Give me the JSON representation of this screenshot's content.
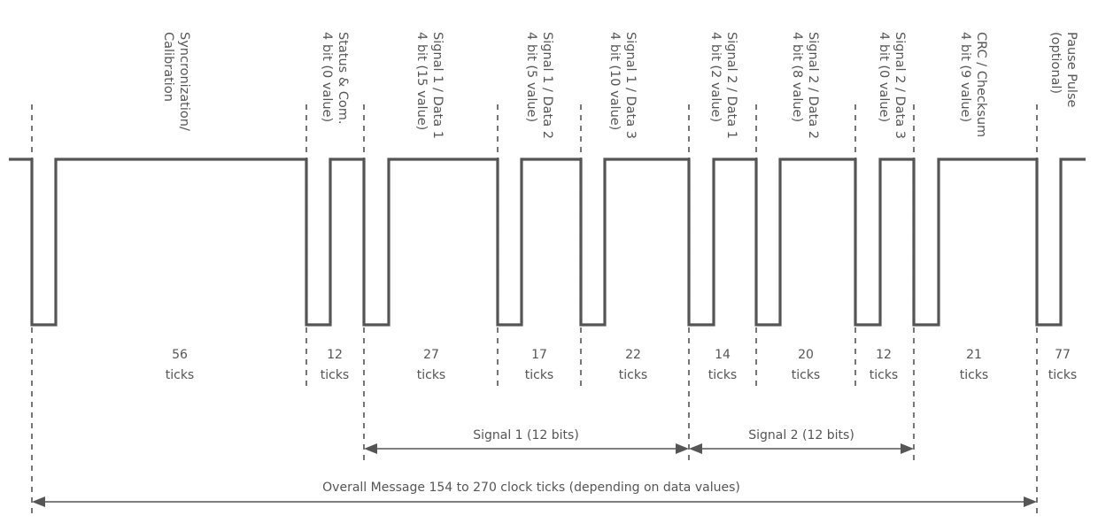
{
  "segments": [
    {
      "label_lines": [
        "Syncronization/",
        "Calibration"
      ],
      "ticks": "56"
    },
    {
      "label_lines": [
        "Status & Com.",
        "4 bit (0 value)"
      ],
      "ticks": "12"
    },
    {
      "label_lines": [
        "Signal 1 / Data 1",
        "4 bit (15 value)"
      ],
      "ticks": "27"
    },
    {
      "label_lines": [
        "Signal 1 / Data 2",
        "4 bit (5 value)"
      ],
      "ticks": "17"
    },
    {
      "label_lines": [
        "Signal 1 / Data 3",
        "4 bit (10 value)"
      ],
      "ticks": "22"
    },
    {
      "label_lines": [
        "Signal 2 / Data 1",
        "4 bit (2 value)"
      ],
      "ticks": "14"
    },
    {
      "label_lines": [
        "Signal 2 / Data 2",
        "4 bit (8 value)"
      ],
      "ticks": "20"
    },
    {
      "label_lines": [
        "Signal 2 / Data 3",
        "4 bit (0 value)"
      ],
      "ticks": "12"
    },
    {
      "label_lines": [
        "CRC / Checksum",
        "4 bit (9 value)"
      ],
      "ticks": "21"
    },
    {
      "label_lines": [
        "Pause Pulse",
        "(optional)"
      ],
      "ticks": "77"
    }
  ],
  "ticks_unit": "ticks",
  "spans": {
    "signal1": "Signal 1 (12 bits)",
    "signal2": "Signal 2 (12 bits)",
    "overall": "Overall Message 154 to 270 clock ticks (depending on data values)"
  },
  "colors": {
    "ink": "#555555",
    "background": "#ffffff"
  }
}
